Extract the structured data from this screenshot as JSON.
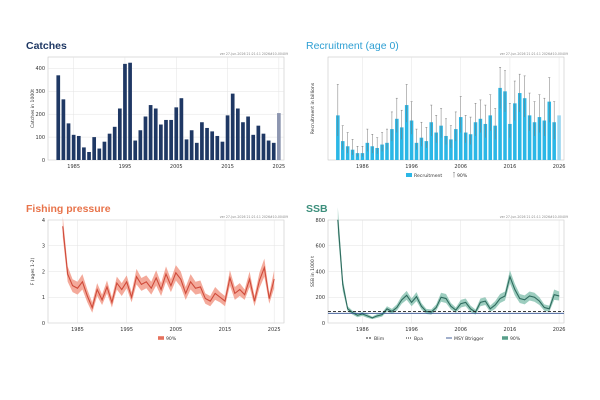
{
  "panels": {
    "catches": {
      "title": "Catches",
      "meta": "ver 27-Jun-2026 21:21:11 2026#10-00409",
      "title_color": "#1f3864",
      "bar_color": "#1f3864",
      "last_bar_color": "#8d96b0"
    },
    "recruitment": {
      "title": "Recruitment (age 0)",
      "meta": "ver 27-Jun-2026 21:21:11 2026#10-00409",
      "title_color": "#2e9fd3",
      "bar_color": "#2bb7e6",
      "last_bar_color": "#9bd7f0",
      "error_color": "#777777"
    },
    "fishing": {
      "title": "Fishing pressure",
      "meta": "ver 27-Jun-2026 21:21:11 2026#10-00409",
      "title_color": "#e8734a",
      "line_color": "#cf4a3a",
      "band_color": "#f08d7a"
    },
    "ssb": {
      "title": "SSB",
      "meta": "ver 27-Jun-2026 21:21:11 2026#10-00409",
      "title_color": "#3c8f7c",
      "line_color": "#2e6b5e",
      "band_color": "#7cbca9",
      "ref_color": "#222222"
    }
  },
  "chart_data": [
    {
      "id": "catches",
      "type": "bar",
      "ylabel": "Catches in 1000t",
      "xlim": [
        1980,
        2026
      ],
      "ylim": [
        0,
        450
      ],
      "yticks": [
        0,
        100,
        200,
        300,
        400
      ],
      "xticks": [
        1985,
        1995,
        2005,
        2015,
        2025
      ],
      "grid": true,
      "x": [
        1982,
        1983,
        1984,
        1985,
        1986,
        1987,
        1988,
        1989,
        1990,
        1991,
        1992,
        1993,
        1994,
        1995,
        1996,
        1997,
        1998,
        1999,
        2000,
        2001,
        2002,
        2003,
        2004,
        2005,
        2006,
        2007,
        2008,
        2009,
        2010,
        2011,
        2012,
        2013,
        2014,
        2015,
        2016,
        2017,
        2018,
        2019,
        2020,
        2021,
        2022,
        2023,
        2024,
        2025
      ],
      "values": [
        370,
        265,
        160,
        110,
        105,
        55,
        35,
        100,
        50,
        80,
        115,
        145,
        225,
        420,
        425,
        85,
        130,
        190,
        240,
        225,
        155,
        175,
        175,
        230,
        270,
        90,
        130,
        75,
        165,
        140,
        125,
        105,
        80,
        195,
        290,
        225,
        165,
        190,
        110,
        150,
        115,
        85,
        75,
        205
      ]
    },
    {
      "id": "recruitment",
      "type": "bar",
      "ylabel": "Recruitment in billions",
      "xlim": [
        1979,
        2027
      ],
      "ylim": [
        0,
        300
      ],
      "xticks": [
        1986,
        1996,
        2006,
        2016,
        2026
      ],
      "grid": true,
      "legend": {
        "position": "bottom",
        "items": [
          "Recruitment",
          "90%"
        ]
      },
      "x": [
        1981,
        1982,
        1983,
        1984,
        1985,
        1986,
        1987,
        1988,
        1989,
        1990,
        1991,
        1992,
        1993,
        1994,
        1995,
        1996,
        1997,
        1998,
        1999,
        2000,
        2001,
        2002,
        2003,
        2004,
        2005,
        2006,
        2007,
        2008,
        2009,
        2010,
        2011,
        2012,
        2013,
        2014,
        2015,
        2016,
        2017,
        2018,
        2019,
        2020,
        2021,
        2022,
        2023,
        2024,
        2025,
        2026
      ],
      "values": [
        130,
        55,
        40,
        30,
        20,
        20,
        50,
        40,
        35,
        45,
        50,
        90,
        120,
        95,
        160,
        115,
        50,
        65,
        55,
        110,
        80,
        100,
        70,
        60,
        90,
        125,
        80,
        75,
        110,
        120,
        105,
        130,
        100,
        210,
        200,
        105,
        165,
        195,
        180,
        130,
        110,
        125,
        115,
        170,
        110,
        130
      ],
      "lower": [
        70,
        30,
        20,
        15,
        10,
        10,
        25,
        20,
        18,
        25,
        30,
        55,
        80,
        60,
        110,
        75,
        30,
        40,
        35,
        70,
        50,
        65,
        45,
        35,
        55,
        80,
        50,
        45,
        70,
        80,
        65,
        85,
        60,
        150,
        140,
        65,
        115,
        140,
        125,
        85,
        70,
        80,
        70,
        110,
        60,
        130
      ],
      "upper": [
        220,
        100,
        80,
        60,
        40,
        40,
        90,
        75,
        65,
        80,
        90,
        140,
        180,
        145,
        220,
        170,
        90,
        110,
        95,
        160,
        130,
        150,
        120,
        100,
        140,
        185,
        130,
        125,
        165,
        175,
        160,
        190,
        150,
        270,
        260,
        165,
        230,
        250,
        245,
        195,
        170,
        190,
        180,
        240,
        170,
        130
      ]
    },
    {
      "id": "fishing",
      "type": "line",
      "ylabel": "F (ages 1-2)",
      "xlim": [
        1979,
        2027
      ],
      "ylim": [
        0,
        4
      ],
      "yticks": [
        0,
        1,
        2,
        3,
        4
      ],
      "xticks": [
        1985,
        1995,
        2005,
        2015,
        2025
      ],
      "grid": true,
      "legend": {
        "position": "bottom",
        "items": [
          "90%"
        ]
      },
      "x": [
        1982,
        1983,
        1984,
        1985,
        1986,
        1987,
        1988,
        1989,
        1990,
        1991,
        1992,
        1993,
        1994,
        1995,
        1996,
        1997,
        1998,
        1999,
        2000,
        2001,
        2002,
        2003,
        2004,
        2005,
        2006,
        2007,
        2008,
        2009,
        2010,
        2011,
        2012,
        2013,
        2014,
        2015,
        2016,
        2017,
        2018,
        2019,
        2020,
        2021,
        2022,
        2023,
        2024,
        2025
      ],
      "values": [
        3.75,
        1.9,
        1.45,
        1.35,
        1.6,
        1.05,
        0.6,
        1.3,
        0.9,
        1.4,
        0.8,
        1.55,
        1.3,
        1.6,
        1.0,
        1.8,
        1.5,
        1.6,
        1.35,
        1.75,
        1.3,
        1.9,
        1.45,
        1.95,
        1.7,
        1.15,
        1.6,
        1.35,
        1.4,
        0.95,
        0.85,
        1.15,
        1.0,
        0.85,
        1.75,
        1.15,
        1.3,
        1.1,
        1.7,
        0.85,
        1.65,
        2.15,
        0.95,
        1.7
      ],
      "lower": [
        3.35,
        1.6,
        1.2,
        1.1,
        1.3,
        0.8,
        0.4,
        1.05,
        0.7,
        1.15,
        0.6,
        1.3,
        1.05,
        1.35,
        0.8,
        1.5,
        1.25,
        1.35,
        1.1,
        1.45,
        1.05,
        1.6,
        1.2,
        1.65,
        1.4,
        0.9,
        1.3,
        1.1,
        1.15,
        0.75,
        0.65,
        0.9,
        0.8,
        0.65,
        1.45,
        0.9,
        1.05,
        0.9,
        1.4,
        0.65,
        1.35,
        1.8,
        0.75,
        1.35
      ],
      "upper": [
        4.15,
        2.2,
        1.7,
        1.6,
        1.9,
        1.3,
        0.8,
        1.55,
        1.1,
        1.65,
        1.0,
        1.8,
        1.55,
        1.85,
        1.2,
        2.1,
        1.75,
        1.85,
        1.6,
        2.05,
        1.55,
        2.2,
        1.7,
        2.25,
        2.0,
        1.4,
        1.9,
        1.6,
        1.65,
        1.15,
        1.05,
        1.4,
        1.2,
        1.05,
        2.05,
        1.4,
        1.55,
        1.3,
        2.0,
        1.05,
        1.95,
        2.5,
        1.15,
        2.05
      ]
    },
    {
      "id": "ssb",
      "type": "line",
      "ylabel": "SSB in 1000 t",
      "xlim": [
        1979,
        2027
      ],
      "ylim": [
        0,
        800
      ],
      "yticks": [
        0,
        200,
        400,
        600,
        800
      ],
      "xticks": [
        1986,
        1996,
        2006,
        2016,
        2026
      ],
      "grid": true,
      "legend": {
        "position": "bottom",
        "items": [
          "Blim",
          "Bpa",
          "MSY Btrigger",
          "90%"
        ]
      },
      "reference_lines": [
        {
          "name": "Blim",
          "value": 90,
          "style": "dashed"
        },
        {
          "name": "MSY Btrigger",
          "value": 75,
          "style": "solid"
        }
      ],
      "x": [
        1981,
        1982,
        1983,
        1984,
        1985,
        1986,
        1987,
        1988,
        1989,
        1990,
        1991,
        1992,
        1993,
        1994,
        1995,
        1996,
        1997,
        1998,
        1999,
        2000,
        2001,
        2002,
        2003,
        2004,
        2005,
        2006,
        2007,
        2008,
        2009,
        2010,
        2011,
        2012,
        2013,
        2014,
        2015,
        2016,
        2017,
        2018,
        2019,
        2020,
        2021,
        2022,
        2023,
        2024,
        2025,
        2026
      ],
      "values": [
        800,
        300,
        110,
        80,
        60,
        70,
        55,
        40,
        55,
        65,
        110,
        90,
        120,
        180,
        215,
        160,
        205,
        130,
        90,
        85,
        120,
        200,
        190,
        130,
        100,
        150,
        160,
        110,
        85,
        160,
        170,
        110,
        140,
        190,
        210,
        360,
        260,
        190,
        180,
        210,
        200,
        170,
        120,
        110,
        220,
        210
      ],
      "lower": [
        700,
        250,
        90,
        65,
        45,
        55,
        40,
        30,
        40,
        50,
        90,
        70,
        95,
        150,
        180,
        130,
        170,
        105,
        70,
        65,
        95,
        165,
        155,
        105,
        80,
        120,
        130,
        85,
        65,
        130,
        140,
        85,
        110,
        155,
        175,
        310,
        215,
        155,
        145,
        175,
        165,
        140,
        95,
        85,
        180,
        175
      ],
      "upper": [
        900,
        350,
        130,
        95,
        75,
        85,
        70,
        50,
        70,
        80,
        130,
        110,
        145,
        210,
        250,
        190,
        240,
        155,
        110,
        105,
        145,
        235,
        225,
        155,
        120,
        180,
        190,
        135,
        105,
        190,
        200,
        135,
        170,
        225,
        245,
        410,
        305,
        225,
        215,
        245,
        235,
        200,
        145,
        135,
        260,
        245
      ]
    }
  ]
}
